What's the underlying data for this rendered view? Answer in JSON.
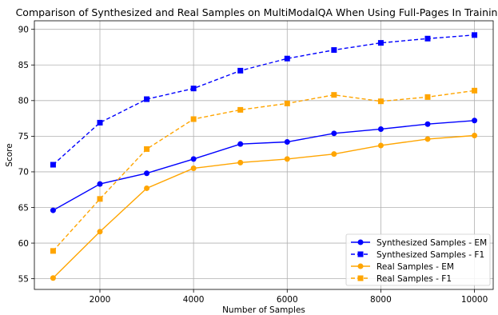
{
  "chart_data": {
    "type": "line",
    "title": "Comparison of Synthesized and Real Samples on MultiModalQA When Using Full-Pages In Training",
    "xlabel": "Number of Samples",
    "ylabel": "Score",
    "x": [
      1000,
      2000,
      3000,
      4000,
      5000,
      6000,
      7000,
      8000,
      9000,
      10000
    ],
    "xlim": [
      600,
      10400
    ],
    "ylim": [
      53.5,
      91.2
    ],
    "xticks": [
      2000,
      4000,
      6000,
      8000,
      10000
    ],
    "yticks": [
      55,
      60,
      65,
      70,
      75,
      80,
      85,
      90
    ],
    "grid": true,
    "legend_position": "lower right",
    "series": [
      {
        "name": "Synthesized Samples - EM",
        "color": "#0000ff",
        "marker": "circle",
        "dash": "solid",
        "values": [
          64.6,
          68.3,
          69.8,
          71.8,
          73.9,
          74.2,
          75.4,
          76.0,
          76.7,
          77.2
        ]
      },
      {
        "name": "Synthesized Samples - F1",
        "color": "#0000ff",
        "marker": "square",
        "dash": "dashed",
        "values": [
          71.0,
          76.9,
          80.2,
          81.7,
          84.2,
          85.9,
          87.1,
          88.1,
          88.7,
          89.2
        ]
      },
      {
        "name": "Real Samples - EM",
        "color": "#ffa500",
        "marker": "circle",
        "dash": "solid",
        "values": [
          55.1,
          61.6,
          67.7,
          70.5,
          71.3,
          71.8,
          72.5,
          73.7,
          74.6,
          75.1
        ]
      },
      {
        "name": "Real Samples - F1",
        "color": "#ffa500",
        "marker": "square",
        "dash": "dashed",
        "values": [
          58.9,
          66.2,
          73.2,
          77.4,
          78.7,
          79.6,
          80.8,
          79.9,
          80.5,
          81.4
        ]
      }
    ]
  }
}
